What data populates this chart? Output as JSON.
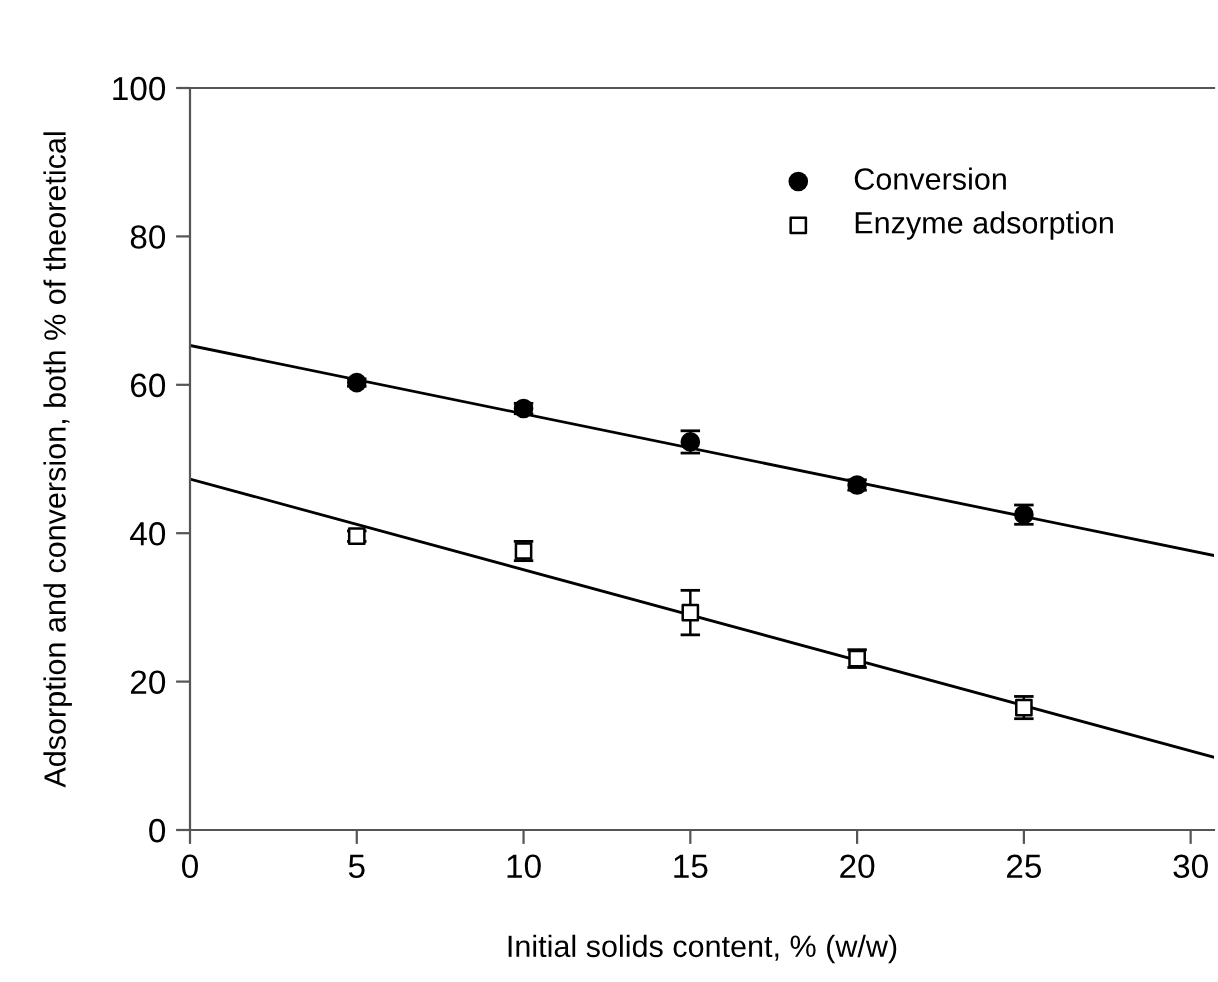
{
  "chart_data": {
    "type": "scatter",
    "xlabel": "Initial solids content, % (w/w)",
    "ylabel": "Adsorption and conversion, both % of theoretical",
    "xlim": [
      0,
      30.7
    ],
    "ylim": [
      0,
      100
    ],
    "xticks": [
      0,
      5,
      10,
      15,
      20,
      25,
      30
    ],
    "yticks": [
      0,
      20,
      40,
      60,
      80,
      100
    ],
    "grid": false,
    "legend": "top right",
    "series": [
      {
        "name": "Conversion",
        "color": "#000000",
        "marker": "circle",
        "x": [
          5,
          10,
          15,
          20,
          25
        ],
        "values": [
          60.3,
          56.8,
          52.3,
          46.5,
          42.5
        ],
        "errors": [
          0.5,
          0.7,
          1.5,
          0.7,
          1.3
        ]
      },
      {
        "name": "Enzyme adsorption",
        "color": "#ffffff",
        "marker": "square",
        "x": [
          5,
          10,
          15,
          20,
          25
        ],
        "values": [
          39.6,
          37.6,
          29.3,
          23.1,
          16.5
        ],
        "errors": [
          0.7,
          1.3,
          3.0,
          1.2,
          1.5
        ]
      },
      {
        "type": "line",
        "color": "#000000",
        "x": [
          0,
          30.7
        ],
        "values": [
          65.3,
          37.0
        ]
      },
      {
        "type": "line",
        "color": "#000000",
        "x": [
          0,
          30.7
        ],
        "values": [
          47.3,
          9.8
        ]
      }
    ]
  }
}
